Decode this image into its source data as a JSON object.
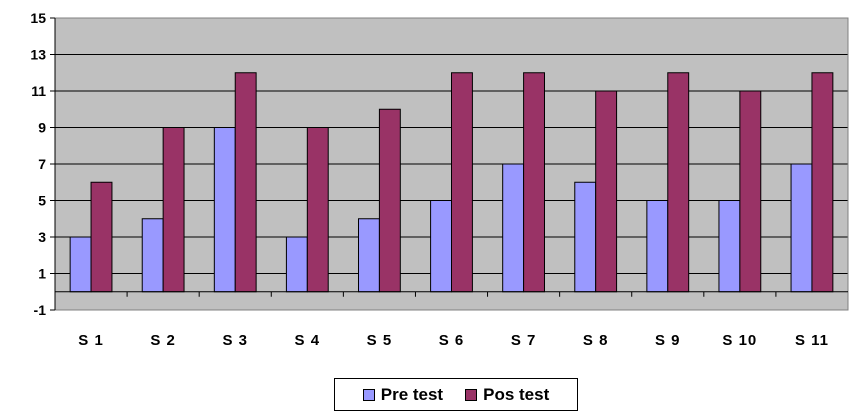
{
  "chart_data": {
    "type": "bar",
    "categories": [
      "S 1",
      "S 2",
      "S 3",
      "S 4",
      "S 5",
      "S 6",
      "S 7",
      "S 8",
      "S 9",
      "S 10",
      "S 11"
    ],
    "series": [
      {
        "name": "Pre test",
        "values": [
          3,
          4,
          9,
          3,
          4,
          5,
          7,
          6,
          5,
          5,
          7
        ],
        "color": "#9999ff"
      },
      {
        "name": "Pos test",
        "values": [
          6,
          9,
          12,
          9,
          10,
          12,
          12,
          11,
          12,
          11,
          12
        ],
        "color": "#993366"
      }
    ],
    "ylim": [
      -1,
      15
    ],
    "yticks": [
      15,
      13,
      11,
      9,
      7,
      5,
      3,
      1,
      -1
    ],
    "ytick_labels": [
      "15",
      "13",
      "11",
      "9",
      "7",
      "5",
      "3",
      "1",
      "-1"
    ],
    "grid": true,
    "plot_background": "#c0c0c0",
    "legend_position": "bottom"
  }
}
